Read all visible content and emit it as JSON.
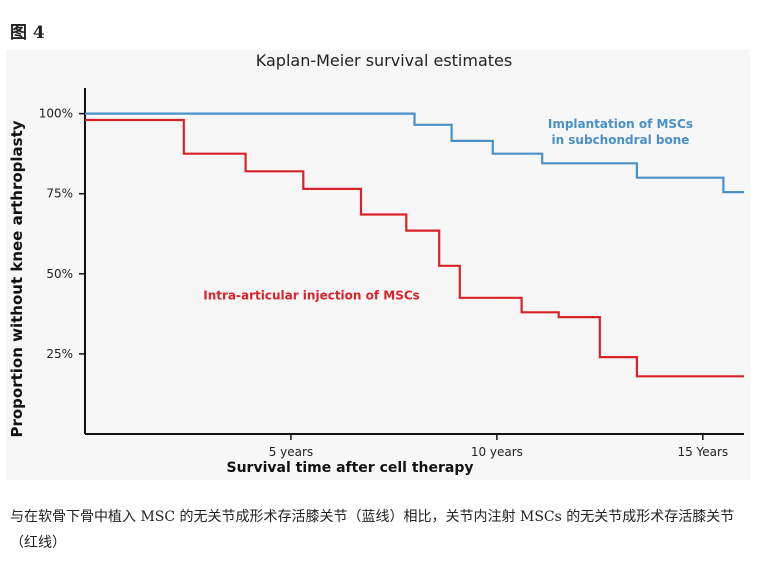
{
  "figure_label": "图 4",
  "caption": "与在软骨下骨中植入 MSC 的无关节成形术存活膝关节（蓝线）相比，关节内注射 MSCs 的无关节成形术存活膝关节（红线）",
  "chart_data": {
    "type": "line",
    "title": "Kaplan-Meier survival estimates",
    "xlabel": "Survival time after cell therapy",
    "ylabel": "Proportion without knee arthroplasty",
    "xlim": [
      0,
      16
    ],
    "ylim": [
      0,
      108
    ],
    "x_ticks": [
      {
        "value": 5,
        "label": "5 years"
      },
      {
        "value": 10,
        "label": "10 years"
      },
      {
        "value": 15,
        "label": "15 Years"
      }
    ],
    "y_ticks": [
      {
        "value": 100,
        "label": "100%"
      },
      {
        "value": 75,
        "label": "75%"
      },
      {
        "value": 50,
        "label": "50%"
      },
      {
        "value": 25,
        "label": "25%"
      }
    ],
    "grid": false,
    "series": [
      {
        "name": "Implantation of MSCs in subchondral bone",
        "label_lines": [
          "Implantation of MSCs",
          "in subchondral bone"
        ],
        "color": "#4a90c8",
        "step": true,
        "points": [
          [
            0,
            100
          ],
          [
            8.0,
            100
          ],
          [
            8.0,
            96.5
          ],
          [
            8.9,
            96.5
          ],
          [
            8.9,
            91.5
          ],
          [
            9.9,
            91.5
          ],
          [
            9.9,
            87.5
          ],
          [
            11.1,
            87.5
          ],
          [
            11.1,
            84.5
          ],
          [
            13.4,
            84.5
          ],
          [
            13.4,
            80
          ],
          [
            15.5,
            80
          ],
          [
            15.5,
            75.5
          ],
          [
            16,
            75.5
          ]
        ]
      },
      {
        "name": "Intra-articular injection of MSCs",
        "label_lines": [
          "Intra-articular injection of MSCs"
        ],
        "color": "#d9232a",
        "step": true,
        "points": [
          [
            0,
            98
          ],
          [
            2.4,
            98
          ],
          [
            2.4,
            87.5
          ],
          [
            3.9,
            87.5
          ],
          [
            3.9,
            82
          ],
          [
            5.3,
            82
          ],
          [
            5.3,
            76.5
          ],
          [
            6.7,
            76.5
          ],
          [
            6.7,
            68.5
          ],
          [
            7.8,
            68.5
          ],
          [
            7.8,
            63.5
          ],
          [
            8.6,
            63.5
          ],
          [
            8.6,
            52.5
          ],
          [
            9.1,
            52.5
          ],
          [
            9.1,
            42.5
          ],
          [
            10.6,
            42.5
          ],
          [
            10.6,
            38
          ],
          [
            11.5,
            38
          ],
          [
            11.5,
            36.5
          ],
          [
            12.5,
            36.5
          ],
          [
            12.5,
            24
          ],
          [
            13.4,
            24
          ],
          [
            13.4,
            18
          ],
          [
            16,
            18
          ]
        ]
      }
    ]
  }
}
